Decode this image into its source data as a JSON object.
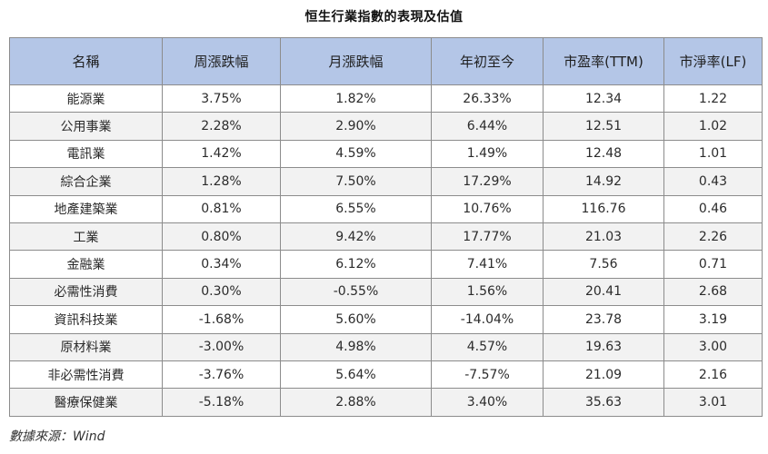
{
  "chart_data": {
    "type": "table",
    "title": "恒生行業指數的表現及估值",
    "header_color": "#b4c6e7",
    "columns": [
      "名稱",
      "周漲跌幅",
      "月漲跌幅",
      "年初至今",
      "市盈率(TTM)",
      "市淨率(LF)"
    ],
    "rows": [
      [
        "能源業",
        "3.75%",
        "1.82%",
        "26.33%",
        "12.34",
        "1.22"
      ],
      [
        "公用事業",
        "2.28%",
        "2.90%",
        "6.44%",
        "12.51",
        "1.02"
      ],
      [
        "電訊業",
        "1.42%",
        "4.59%",
        "1.49%",
        "12.48",
        "1.01"
      ],
      [
        "綜合企業",
        "1.28%",
        "7.50%",
        "17.29%",
        "14.92",
        "0.43"
      ],
      [
        "地產建築業",
        "0.81%",
        "6.55%",
        "10.76%",
        "116.76",
        "0.46"
      ],
      [
        "工業",
        "0.80%",
        "9.42%",
        "17.77%",
        "21.03",
        "2.26"
      ],
      [
        "金融業",
        "0.34%",
        "6.12%",
        "7.41%",
        "7.56",
        "0.71"
      ],
      [
        "必需性消費",
        "0.30%",
        "-0.55%",
        "1.56%",
        "20.41",
        "2.68"
      ],
      [
        "資訊科技業",
        "-1.68%",
        "5.60%",
        "-14.04%",
        "23.78",
        "3.19"
      ],
      [
        "原材料業",
        "-3.00%",
        "4.98%",
        "4.57%",
        "19.63",
        "3.00"
      ],
      [
        "非必需性消費",
        "-3.76%",
        "5.64%",
        "-7.57%",
        "21.09",
        "2.16"
      ],
      [
        "醫療保健業",
        "-5.18%",
        "2.88%",
        "3.40%",
        "35.63",
        "3.01"
      ]
    ],
    "source": "數據來源：Wind"
  }
}
